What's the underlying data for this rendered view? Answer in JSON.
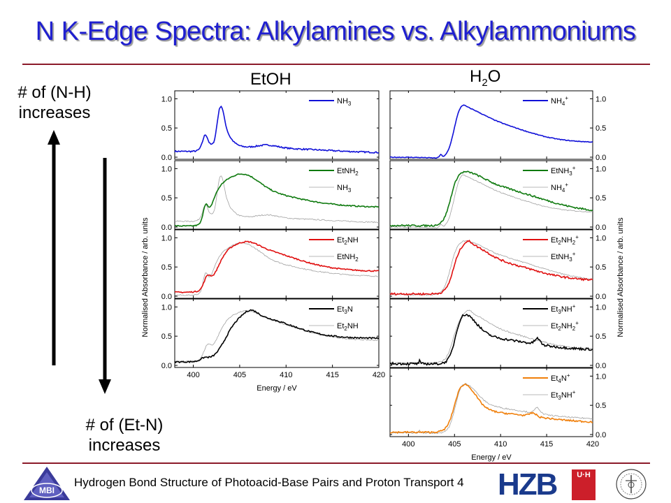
{
  "slide": {
    "title": "N K-Edge Spectra: Alkylamines vs. Alkylammoniums",
    "left_top_text": "# of (N-H)\nincreases",
    "left_bottom_text": "# of (Et-N)\nincreases",
    "col_etoh": "EtOH",
    "col_h2o_main": "H",
    "col_h2o_sub": "2",
    "col_h2o_tail": "O",
    "footer": "Hydrogen Bond Structure of Photoacid-Base Pairs and Proton Transport 4",
    "logo_mbi": "MBI",
    "logo_hzb": "HZB",
    "logo_uhh": "U·H",
    "colors": {
      "title": "#1f1fd0",
      "rule": "#8b1a2a",
      "blue": "#1010d8",
      "green": "#0f7a0f",
      "red": "#e01010",
      "black": "#000000",
      "orange": "#f07f0a",
      "gray": "#a0a0a0"
    }
  },
  "chart_data": [
    {
      "type": "line",
      "column": "EtOH",
      "row": 0,
      "xlim": [
        398,
        420
      ],
      "ylim": [
        0,
        1.1
      ],
      "yticks": [
        0.0,
        0.5,
        1.0
      ],
      "series": [
        {
          "label": "NH",
          "sub": "3",
          "sup": "",
          "color": "#1010d8",
          "shape": "nh3",
          "noise": 0.012
        }
      ]
    },
    {
      "type": "line",
      "column": "EtOH",
      "row": 1,
      "xlim": [
        398,
        420
      ],
      "ylim": [
        0,
        1.1
      ],
      "yticks": [
        0.0,
        0.5,
        1.0
      ],
      "series": [
        {
          "label": "EtNH",
          "sub": "2",
          "sup": "",
          "color": "#0f7a0f",
          "shape": "etnh2",
          "noise": 0.01
        },
        {
          "label": "NH",
          "sub": "3",
          "sup": "",
          "color": "#a0a0a0",
          "shape": "nh3",
          "noise": 0.01
        }
      ]
    },
    {
      "type": "line",
      "column": "EtOH",
      "row": 2,
      "xlim": [
        398,
        420
      ],
      "ylim": [
        0,
        1.1
      ],
      "yticks": [
        0.0,
        0.5,
        1.0
      ],
      "series": [
        {
          "label": "Et",
          "sub": "2",
          "sup": "",
          "tail": "NH",
          "color": "#e01010",
          "shape": "et2nh",
          "noise": 0.01
        },
        {
          "label": "EtNH",
          "sub": "2",
          "sup": "",
          "color": "#a0a0a0",
          "shape": "etnh2",
          "noise": 0.01
        }
      ]
    },
    {
      "type": "line",
      "column": "EtOH",
      "row": 3,
      "xlim": [
        398,
        420
      ],
      "ylim": [
        0,
        1.1
      ],
      "yticks": [
        0.0,
        0.5,
        1.0
      ],
      "xticks": [
        400,
        405,
        410,
        415,
        420
      ],
      "xlabel": "Energy / eV",
      "series": [
        {
          "label": "Et",
          "sub": "3",
          "sup": "",
          "tail": "N",
          "color": "#000000",
          "shape": "et3n",
          "noise": 0.012
        },
        {
          "label": "Et",
          "sub": "2",
          "sup": "",
          "tail": "NH",
          "color": "#a0a0a0",
          "shape": "et2nh",
          "noise": 0.01
        }
      ]
    },
    {
      "type": "line",
      "column": "H2O",
      "row": 0,
      "xlim": [
        398,
        420
      ],
      "ylim": [
        0,
        1.1
      ],
      "yticks": [
        0.0,
        0.5,
        1.0
      ],
      "series": [
        {
          "label": "NH",
          "sub": "4",
          "sup": "+",
          "color": "#1010d8",
          "shape": "nh4",
          "noise": 0.006
        }
      ]
    },
    {
      "type": "line",
      "column": "H2O",
      "row": 1,
      "xlim": [
        398,
        420
      ],
      "ylim": [
        0,
        1.1
      ],
      "yticks": [
        0.0,
        0.5,
        1.0
      ],
      "series": [
        {
          "label": "EtNH",
          "sub": "3",
          "sup": "+",
          "color": "#0f7a0f",
          "shape": "etnh3",
          "noise": 0.014
        },
        {
          "label": "NH",
          "sub": "4",
          "sup": "+",
          "color": "#a0a0a0",
          "shape": "nh4",
          "noise": 0.008
        }
      ]
    },
    {
      "type": "line",
      "column": "H2O",
      "row": 2,
      "xlim": [
        398,
        420
      ],
      "ylim": [
        0,
        1.1
      ],
      "yticks": [
        0.0,
        0.5,
        1.0
      ],
      "series": [
        {
          "label": "Et",
          "sub": "2",
          "sup": "+",
          "tail": "NH",
          "tailsub": "2",
          "color": "#e01010",
          "shape": "et2nh2",
          "noise": 0.016
        },
        {
          "label": "EtNH",
          "sub": "3",
          "sup": "+",
          "color": "#a0a0a0",
          "shape": "etnh3",
          "noise": 0.01
        }
      ]
    },
    {
      "type": "line",
      "column": "H2O",
      "row": 3,
      "xlim": [
        398,
        420
      ],
      "ylim": [
        0,
        1.1
      ],
      "yticks": [
        0.0,
        0.5,
        1.0
      ],
      "series": [
        {
          "label": "Et",
          "sub": "3",
          "sup": "+",
          "tail": "NH",
          "color": "#000000",
          "shape": "et3nh",
          "noise": 0.02
        },
        {
          "label": "Et",
          "sub": "2",
          "sup": "+",
          "tail": "NH",
          "tailsub": "2",
          "color": "#a0a0a0",
          "shape": "et2nh2",
          "noise": 0.012
        }
      ]
    },
    {
      "type": "line",
      "column": "H2O",
      "row": 4,
      "xlim": [
        398,
        420
      ],
      "ylim": [
        0,
        1.1
      ],
      "yticks": [
        0.0,
        0.5,
        1.0
      ],
      "xticks": [
        400,
        405,
        410,
        415,
        420
      ],
      "xlabel": "Energy / eV",
      "series": [
        {
          "label": "Et",
          "sub": "4",
          "sup": "+",
          "tail": "N",
          "color": "#f07f0a",
          "shape": "et4n",
          "noise": 0.014
        },
        {
          "label": "Et",
          "sub": "3",
          "sup": "+",
          "tail": "NH",
          "color": "#a0a0a0",
          "shape": "et3nh",
          "noise": 0.012
        }
      ]
    }
  ],
  "axis_text": {
    "ylabel": "Normalised Absorbance / arb. units"
  }
}
